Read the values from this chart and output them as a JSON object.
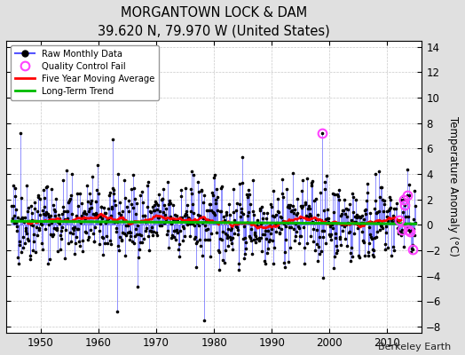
{
  "title": "MORGANTOWN LOCK & DAM",
  "subtitle": "39.620 N, 79.970 W (United States)",
  "ylabel": "Temperature Anomaly (°C)",
  "credit": "Berkeley Earth",
  "xlim": [
    1944,
    2016
  ],
  "ylim": [
    -8.5,
    14.5
  ],
  "yticks": [
    -8,
    -6,
    -4,
    -2,
    0,
    2,
    4,
    6,
    8,
    10,
    12,
    14
  ],
  "xticks": [
    1950,
    1960,
    1970,
    1980,
    1990,
    2000,
    2010
  ],
  "background_color": "#e0e0e0",
  "plot_bg_color": "#ffffff",
  "trend_color": "#00bb00",
  "moving_avg_color": "#ff0000",
  "raw_line_color": "#5555ff",
  "raw_dot_color": "#000000",
  "qc_fail_color": "#ff44ff",
  "seed": 42,
  "start_year": 1945.0,
  "end_year": 2015.0,
  "noise_std": 2.1,
  "ma_window": 60,
  "qc_near_end_years": [
    2012.2,
    2012.5,
    2012.8,
    2013.1,
    2013.4,
    2013.7,
    2014.0,
    2014.3
  ],
  "qc_mid_year": 1998.7,
  "spike_high_year": 1946.5,
  "spike_high_val": 7.2,
  "spike_low_year": 1978.3,
  "spike_low_val": -7.5,
  "spike_low2_year": 1963.2,
  "spike_low2_val": -6.8,
  "spike_qc_val": 7.2
}
